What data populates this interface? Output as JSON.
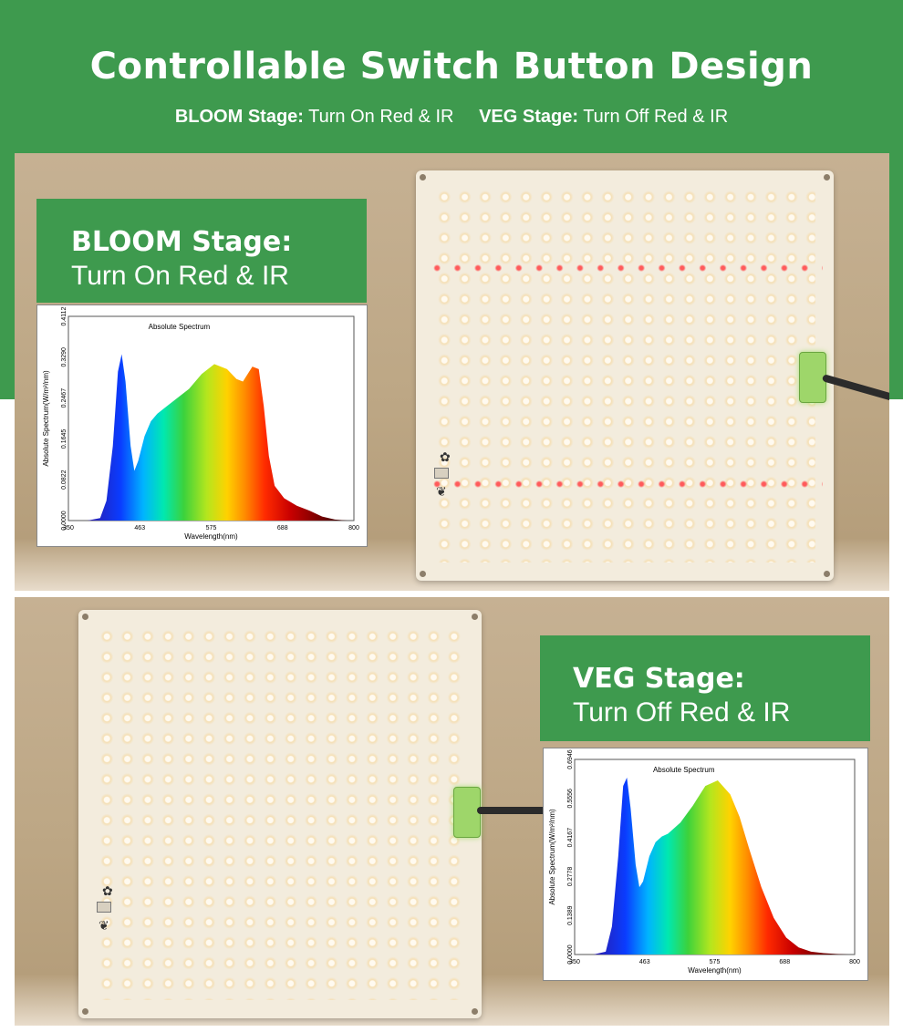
{
  "header": {
    "title": "Controllable Switch Button Design",
    "subtitle": {
      "bloom_label": "BLOOM Stage:",
      "bloom_text": "Turn On Red & IR",
      "veg_label": "VEG Stage:",
      "veg_text": "Turn Off Red & IR"
    }
  },
  "colors": {
    "brand_green": "#3e9a4e",
    "red_led": "#ff5a5a",
    "warm_led": "#f5dfb4"
  },
  "bloom": {
    "stage": "BLOOM Stage:",
    "description": "Turn On Red & IR",
    "chart_data": {
      "type": "area",
      "title": "Absolute Spectrum",
      "xlabel": "Wavelength(nm)",
      "ylabel": "Absolute Spectrum(W/m²/nm)",
      "x_ticks": [
        "350",
        "463",
        "575",
        "688",
        "800"
      ],
      "y_ticks": [
        "0.0000",
        "0.0822",
        "0.1645",
        "0.2467",
        "0.3290",
        "0.4112"
      ],
      "xlim": [
        350,
        800
      ],
      "ylim": [
        0,
        0.4112
      ],
      "x": [
        380,
        400,
        410,
        420,
        428,
        434,
        440,
        448,
        454,
        460,
        470,
        480,
        490,
        500,
        520,
        540,
        560,
        580,
        600,
        615,
        625,
        640,
        650,
        658,
        666,
        675,
        690,
        710,
        730,
        750,
        770,
        790
      ],
      "y": [
        0,
        0.005,
        0.04,
        0.15,
        0.3,
        0.335,
        0.28,
        0.15,
        0.1,
        0.12,
        0.17,
        0.2,
        0.215,
        0.225,
        0.245,
        0.265,
        0.295,
        0.315,
        0.305,
        0.285,
        0.28,
        0.31,
        0.305,
        0.23,
        0.13,
        0.07,
        0.045,
        0.03,
        0.02,
        0.008,
        0.002,
        0
      ]
    }
  },
  "veg": {
    "stage": "VEG Stage:",
    "description": "Turn Off Red & IR",
    "chart_data": {
      "type": "area",
      "title": "Absolute Spectrum",
      "xlabel": "Wavelength(nm)",
      "ylabel": "Absolute Spectrum(W/m²/nm)",
      "x_ticks": [
        "350",
        "463",
        "575",
        "688",
        "800"
      ],
      "y_ticks": [
        "0.0000",
        "0.1389",
        "0.2778",
        "0.4167",
        "0.5556",
        "0.6946"
      ],
      "xlim": [
        350,
        800
      ],
      "ylim": [
        0,
        0.6946
      ],
      "x": [
        380,
        400,
        410,
        420,
        428,
        434,
        440,
        448,
        454,
        460,
        470,
        480,
        490,
        500,
        520,
        540,
        560,
        580,
        600,
        615,
        630,
        650,
        670,
        690,
        710,
        730,
        750,
        770,
        790
      ],
      "y": [
        0,
        0.01,
        0.1,
        0.35,
        0.6,
        0.63,
        0.52,
        0.32,
        0.24,
        0.26,
        0.35,
        0.4,
        0.42,
        0.43,
        0.47,
        0.53,
        0.6,
        0.62,
        0.57,
        0.49,
        0.38,
        0.24,
        0.13,
        0.06,
        0.025,
        0.01,
        0.005,
        0.002,
        0
      ]
    }
  }
}
